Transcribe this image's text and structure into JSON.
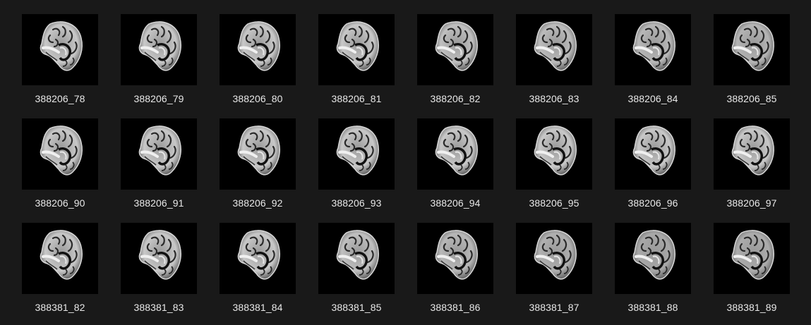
{
  "files": [
    {
      "name": "388206_78",
      "fade": 0
    },
    {
      "name": "388206_79",
      "fade": 0
    },
    {
      "name": "388206_80",
      "fade": 0
    },
    {
      "name": "388206_81",
      "fade": 0
    },
    {
      "name": "388206_82",
      "fade": 0.1
    },
    {
      "name": "388206_83",
      "fade": 0.15
    },
    {
      "name": "388206_84",
      "fade": 0.2
    },
    {
      "name": "388206_85",
      "fade": 0.25
    },
    {
      "name": "388206_90",
      "fade": 0
    },
    {
      "name": "388206_91",
      "fade": 0
    },
    {
      "name": "388206_92",
      "fade": 0
    },
    {
      "name": "388206_93",
      "fade": 0
    },
    {
      "name": "388206_94",
      "fade": 0
    },
    {
      "name": "388206_95",
      "fade": 0
    },
    {
      "name": "388206_96",
      "fade": 0
    },
    {
      "name": "388206_97",
      "fade": 0
    },
    {
      "name": "388381_82",
      "fade": 0
    },
    {
      "name": "388381_83",
      "fade": 0
    },
    {
      "name": "388381_84",
      "fade": 0
    },
    {
      "name": "388381_85",
      "fade": 0.1
    },
    {
      "name": "388381_86",
      "fade": 0.2
    },
    {
      "name": "388381_87",
      "fade": 0.3
    },
    {
      "name": "388381_88",
      "fade": 0.4
    },
    {
      "name": "388381_89",
      "fade": 0.35
    }
  ],
  "thumbnail_icon": "brain-mri-slice-thumbnail",
  "colors": {
    "background": "#191919",
    "thumbnail_bg": "#000000",
    "label_text": "#e8e8e8"
  }
}
